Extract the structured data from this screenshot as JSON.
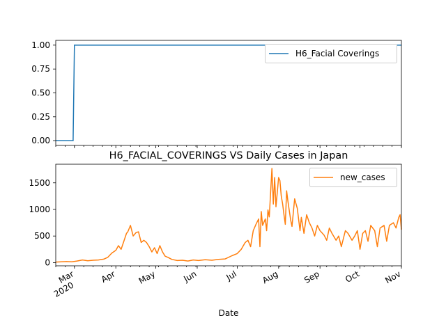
{
  "chart_data": [
    {
      "type": "line",
      "title": "",
      "xlabel": "",
      "ylabel": "",
      "ylim": [
        -0.05,
        1.05
      ],
      "yticks": [
        "0.00",
        "0.25",
        "0.50",
        "0.75",
        "1.00"
      ],
      "yticks_values": [
        0,
        0.25,
        0.5,
        0.75,
        1.0
      ],
      "xlim": [
        "2020-02-16",
        "2020-11-01"
      ],
      "legend_position": "top-right",
      "series": [
        {
          "name": "H6_Facial Coverings",
          "color": "#1f77b4",
          "x": [
            "2020-02-16",
            "2020-02-29",
            "2020-03-01",
            "2020-11-01"
          ],
          "y": [
            0,
            0,
            1,
            1
          ]
        }
      ]
    },
    {
      "type": "line",
      "title": "H6_FACIAL_COVERINGS VS Daily Cases in Japan",
      "xlabel": "Date",
      "ylabel": "",
      "ylim": [
        -60,
        1850
      ],
      "yticks": [
        "0",
        "500",
        "1000",
        "1500"
      ],
      "yticks_values": [
        0,
        500,
        1000,
        1500
      ],
      "xlim": [
        "2020-02-16",
        "2020-11-01"
      ],
      "xticks": [
        {
          "date": "2020-03-01",
          "label": "Mar",
          "sublabel": "2020"
        },
        {
          "date": "2020-04-01",
          "label": "Apr"
        },
        {
          "date": "2020-05-01",
          "label": "May"
        },
        {
          "date": "2020-06-01",
          "label": "Jun"
        },
        {
          "date": "2020-07-01",
          "label": "Jul"
        },
        {
          "date": "2020-08-01",
          "label": "Aug"
        },
        {
          "date": "2020-09-01",
          "label": "Sep"
        },
        {
          "date": "2020-10-01",
          "label": "Oct"
        },
        {
          "date": "2020-11-01",
          "label": "Nov"
        }
      ],
      "legend_position": "top-right",
      "series": [
        {
          "name": "new_cases",
          "color": "#ff7f0e",
          "x": [
            "2020-02-16",
            "2020-02-20",
            "2020-02-24",
            "2020-02-28",
            "2020-03-03",
            "2020-03-07",
            "2020-03-11",
            "2020-03-15",
            "2020-03-19",
            "2020-03-23",
            "2020-03-26",
            "2020-03-29",
            "2020-04-01",
            "2020-04-03",
            "2020-04-05",
            "2020-04-07",
            "2020-04-09",
            "2020-04-10",
            "2020-04-12",
            "2020-04-14",
            "2020-04-16",
            "2020-04-18",
            "2020-04-20",
            "2020-04-22",
            "2020-04-24",
            "2020-04-26",
            "2020-04-28",
            "2020-04-30",
            "2020-05-02",
            "2020-05-04",
            "2020-05-06",
            "2020-05-08",
            "2020-05-10",
            "2020-05-13",
            "2020-05-17",
            "2020-05-21",
            "2020-05-25",
            "2020-05-29",
            "2020-06-02",
            "2020-06-07",
            "2020-06-12",
            "2020-06-17",
            "2020-06-22",
            "2020-06-27",
            "2020-07-01",
            "2020-07-04",
            "2020-07-07",
            "2020-07-09",
            "2020-07-11",
            "2020-07-13",
            "2020-07-15",
            "2020-07-17",
            "2020-07-18",
            "2020-07-19",
            "2020-07-20",
            "2020-07-22",
            "2020-07-23",
            "2020-07-24",
            "2020-07-25",
            "2020-07-27",
            "2020-07-28",
            "2020-07-29",
            "2020-07-30",
            "2020-07-31",
            "2020-08-01",
            "2020-08-02",
            "2020-08-03",
            "2020-08-04",
            "2020-08-05",
            "2020-08-06",
            "2020-08-07",
            "2020-08-08",
            "2020-08-10",
            "2020-08-11",
            "2020-08-13",
            "2020-08-15",
            "2020-08-17",
            "2020-08-18",
            "2020-08-20",
            "2020-08-22",
            "2020-08-24",
            "2020-08-26",
            "2020-08-28",
            "2020-08-30",
            "2020-09-01",
            "2020-09-04",
            "2020-09-06",
            "2020-09-08",
            "2020-09-10",
            "2020-09-13",
            "2020-09-15",
            "2020-09-17",
            "2020-09-20",
            "2020-09-22",
            "2020-09-25",
            "2020-09-27",
            "2020-09-29",
            "2020-10-01",
            "2020-10-03",
            "2020-10-05",
            "2020-10-07",
            "2020-10-09",
            "2020-10-12",
            "2020-10-14",
            "2020-10-16",
            "2020-10-19",
            "2020-10-21",
            "2020-10-23",
            "2020-10-26",
            "2020-10-28",
            "2020-10-30",
            "2020-10-31",
            "2020-11-01"
          ],
          "y": [
            10,
            15,
            20,
            15,
            30,
            50,
            35,
            45,
            50,
            65,
            100,
            180,
            230,
            320,
            250,
            400,
            550,
            580,
            700,
            500,
            560,
            580,
            380,
            420,
            380,
            300,
            200,
            280,
            170,
            320,
            200,
            120,
            100,
            60,
            40,
            45,
            30,
            50,
            40,
            55,
            45,
            60,
            70,
            130,
            170,
            250,
            380,
            420,
            300,
            600,
            720,
            820,
            300,
            960,
            700,
            820,
            600,
            990,
            860,
            1770,
            1100,
            1600,
            1050,
            1320,
            1600,
            1540,
            1250,
            1100,
            900,
            720,
            1350,
            1150,
            800,
            680,
            1200,
            1020,
            600,
            850,
            550,
            900,
            750,
            650,
            500,
            700,
            600,
            520,
            420,
            650,
            550,
            420,
            500,
            300,
            600,
            550,
            420,
            500,
            600,
            250,
            550,
            600,
            400,
            700,
            600,
            300,
            650,
            700,
            400,
            700,
            750,
            650,
            850,
            900,
            620
          ]
        }
      ]
    }
  ]
}
